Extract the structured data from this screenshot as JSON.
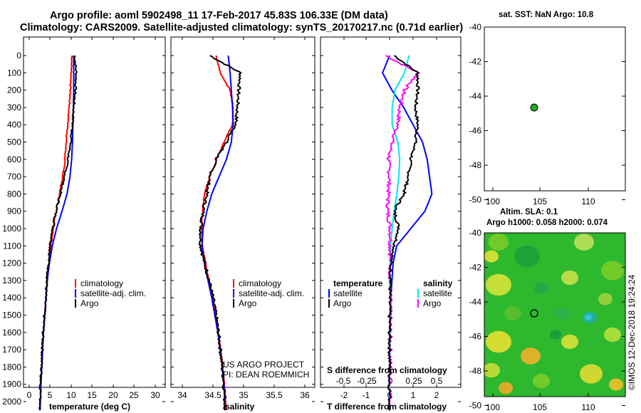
{
  "title_line1": "Argo profile: aoml 5902498_11 17-Feb-2017 45.83S 106.33E (DM data)",
  "title_line2": "Climatology: CARS2009. Satellite-adjusted climatology: synTS_20170217.nc (0.71d earlier)",
  "depth_ticks": [
    0,
    100,
    200,
    300,
    400,
    500,
    600,
    700,
    800,
    900,
    1000,
    1100,
    1200,
    1300,
    1400,
    1500,
    1600,
    1700,
    1800,
    1900,
    2000
  ],
  "panels": {
    "temperature": {
      "xlabel": "temperature (deg C)",
      "xticks": [
        "0",
        "5",
        "10",
        "15",
        "20",
        "25",
        "30"
      ],
      "legend": [
        "climatology",
        "satellite-adj. clim.",
        "Argo"
      ]
    },
    "salinity": {
      "xlabel": "salinity",
      "xticks": [
        "34",
        "34.5",
        "35",
        "35.5",
        "36"
      ],
      "legend": [
        "climatology",
        "satellite-adj. clim.",
        "Argo"
      ],
      "credit1": "US ARGO PROJECT",
      "credit2": "PI: DEAN ROEMMICH"
    },
    "difference": {
      "xlabel": "T difference from climatology",
      "xticks": [
        "-2",
        "-1",
        "0",
        "1",
        "2"
      ],
      "s_label": "S difference from climatology",
      "s_ticks": [
        "-0.5",
        "-0.25",
        "0",
        "0.25",
        "0.5"
      ],
      "legend_t_head": "temperature",
      "legend_s_head": "salinity",
      "legend_t": [
        "satellite",
        "Argo"
      ],
      "legend_s": [
        "satellite",
        "Argo"
      ]
    }
  },
  "map_top": {
    "title": "sat. SST: NaN Argo: 10.8",
    "yticks": [
      "-40",
      "-42",
      "-44",
      "-46",
      "-48",
      "-50"
    ],
    "xticks": [
      "100",
      "105",
      "110"
    ]
  },
  "map_bottom": {
    "title1": "Altim. SLA: 0.1",
    "title2": "Argo h1000: 0.058 h2000: 0.074",
    "yticks": [
      "-40",
      "-42",
      "-44",
      "-46",
      "-48",
      "-50"
    ],
    "xticks": [
      "100",
      "105",
      "110"
    ]
  },
  "watermark": "©IMOS 12-Dec-2018 19:24:24",
  "colors": {
    "climatology": "#ff0000",
    "satellite": "#0000ff",
    "argo": "#000000",
    "sat_s": "#00e5ee",
    "argo_s": "#ff00ff"
  },
  "chart_data": [
    {
      "type": "line",
      "xlabel": "temperature (deg C)",
      "ylabel": "",
      "xlim": [
        -1,
        32
      ],
      "ylim": [
        2050,
        0
      ],
      "series": [
        {
          "name": "climatology",
          "x": [
            10.2,
            10.0,
            9.8,
            9.5,
            9.2,
            8.8,
            8.5,
            8.0,
            7.2,
            6.4,
            5.8,
            5.2,
            4.7,
            4.3,
            4.0,
            3.7,
            3.4,
            3.2,
            3.0,
            2.8,
            2.6
          ],
          "y": [
            0,
            100,
            200,
            300,
            400,
            500,
            600,
            700,
            800,
            900,
            1000,
            1100,
            1200,
            1300,
            1400,
            1500,
            1600,
            1700,
            1800,
            1900,
            2050
          ]
        },
        {
          "name": "satellite-adj. clim.",
          "x": [
            10.6,
            10.6,
            10.6,
            10.5,
            10.4,
            10.3,
            10.1,
            9.7,
            9.0,
            7.8,
            6.5,
            5.5,
            4.8,
            4.3,
            4.0,
            3.7,
            3.4,
            3.2,
            3.0,
            2.8,
            2.6
          ],
          "y": [
            0,
            100,
            200,
            300,
            400,
            500,
            600,
            700,
            800,
            900,
            1000,
            1100,
            1200,
            1300,
            1400,
            1500,
            1600,
            1700,
            1800,
            1900,
            2050
          ]
        },
        {
          "name": "Argo",
          "x": [
            10.8,
            11.2,
            11.0,
            10.6,
            10.3,
            9.9,
            9.2,
            8.4,
            7.4,
            6.4,
            5.6,
            5.0,
            4.6,
            4.2,
            3.9,
            3.6,
            3.3,
            3.1,
            2.9,
            2.7,
            2.6
          ],
          "y": [
            0,
            100,
            200,
            300,
            400,
            500,
            600,
            700,
            800,
            900,
            1000,
            1100,
            1200,
            1300,
            1400,
            1500,
            1600,
            1700,
            1800,
            1900,
            2050
          ]
        }
      ]
    },
    {
      "type": "line",
      "xlabel": "salinity",
      "ylabel": "",
      "xlim": [
        33.9,
        36.1
      ],
      "ylim": [
        2050,
        0
      ],
      "series": [
        {
          "name": "climatology",
          "x": [
            34.55,
            34.62,
            34.78,
            34.83,
            34.82,
            34.68,
            34.56,
            34.45,
            34.36,
            34.33,
            34.32,
            34.33,
            34.38,
            34.44,
            34.5,
            34.55,
            34.59,
            34.63,
            34.66,
            34.69,
            34.72
          ],
          "y": [
            0,
            100,
            200,
            300,
            400,
            500,
            600,
            700,
            800,
            900,
            1000,
            1100,
            1200,
            1300,
            1400,
            1500,
            1600,
            1700,
            1800,
            1900,
            2050
          ]
        },
        {
          "name": "satellite-adj. clim.",
          "x": [
            34.75,
            34.78,
            34.8,
            34.82,
            34.83,
            34.8,
            34.72,
            34.6,
            34.48,
            34.4,
            34.34,
            34.32,
            34.36,
            34.42,
            34.48,
            34.53,
            34.58,
            34.62,
            34.65,
            34.68,
            34.7
          ],
          "y": [
            0,
            100,
            200,
            300,
            400,
            500,
            600,
            700,
            800,
            900,
            1000,
            1100,
            1200,
            1300,
            1400,
            1500,
            1600,
            1700,
            1800,
            1900,
            2050
          ]
        },
        {
          "name": "Argo",
          "x": [
            34.45,
            34.95,
            34.92,
            34.9,
            34.87,
            34.72,
            34.55,
            34.45,
            34.4,
            34.34,
            34.3,
            34.3,
            34.36,
            34.44,
            34.5,
            34.55,
            34.59,
            34.62,
            34.65,
            34.68,
            34.7
          ],
          "y": [
            0,
            100,
            200,
            300,
            400,
            500,
            600,
            700,
            800,
            900,
            1000,
            1100,
            1200,
            1300,
            1400,
            1500,
            1600,
            1700,
            1800,
            1900,
            2050
          ]
        }
      ]
    },
    {
      "type": "line",
      "xlabel": "T difference from climatology",
      "ylabel": "",
      "xlim": [
        -2.8,
        2.8
      ],
      "ylim": [
        2050,
        0
      ],
      "series": [
        {
          "name": "temperature satellite",
          "x": [
            0.0,
            -0.3,
            0.1,
            0.6,
            1.0,
            1.4,
            1.6,
            1.7,
            1.8,
            1.5,
            0.9,
            0.3,
            0.15,
            0.1,
            0.05,
            0.05,
            0.0,
            0.0,
            0.0,
            0.0,
            0.0
          ],
          "y": [
            0,
            100,
            200,
            300,
            400,
            500,
            600,
            700,
            800,
            900,
            1000,
            1100,
            1200,
            1300,
            1400,
            1500,
            1600,
            1700,
            1800,
            1900,
            2050
          ]
        },
        {
          "name": "temperature Argo",
          "x": [
            0.2,
            1.2,
            1.2,
            1.1,
            1.2,
            1.1,
            0.9,
            0.8,
            0.6,
            0.2,
            0.4,
            0.2,
            0.05,
            0.05,
            0.0,
            0.0,
            0.0,
            0.0,
            0.0,
            0.0,
            0.0
          ],
          "y": [
            0,
            100,
            200,
            300,
            400,
            500,
            600,
            700,
            800,
            900,
            1000,
            1100,
            1200,
            1300,
            1400,
            1500,
            1600,
            1700,
            1800,
            1900,
            2050
          ]
        }
      ]
    },
    {
      "type": "line",
      "xlabel": "S difference from climatology",
      "ylabel": "",
      "xlim": [
        -0.7,
        0.7
      ],
      "ylim": [
        2050,
        0
      ],
      "series": [
        {
          "name": "salinity satellite",
          "x": [
            0.2,
            0.15,
            0.05,
            0.02,
            0.02,
            0.08,
            0.1,
            0.09,
            0.07,
            0.04,
            0.02,
            0.0,
            0.0,
            -0.01,
            0.0,
            0.0,
            0.0,
            0.0,
            -0.01,
            -0.01,
            -0.01
          ],
          "y": [
            0,
            100,
            200,
            300,
            400,
            500,
            600,
            700,
            800,
            900,
            1000,
            1100,
            1200,
            1300,
            1400,
            1500,
            1600,
            1700,
            1800,
            1900,
            2050
          ]
        },
        {
          "name": "salinity Argo",
          "x": [
            -0.05,
            0.3,
            0.15,
            0.1,
            0.08,
            0.02,
            -0.02,
            -0.01,
            -0.02,
            -0.03,
            0.0,
            0.0,
            0.0,
            0.0,
            0.0,
            0.0,
            0.0,
            0.0,
            0.0,
            0.0,
            0.0
          ],
          "y": [
            0,
            100,
            200,
            300,
            400,
            500,
            600,
            700,
            800,
            900,
            1000,
            1100,
            1200,
            1300,
            1400,
            1500,
            1600,
            1700,
            1800,
            1900,
            2050
          ]
        }
      ]
    }
  ]
}
